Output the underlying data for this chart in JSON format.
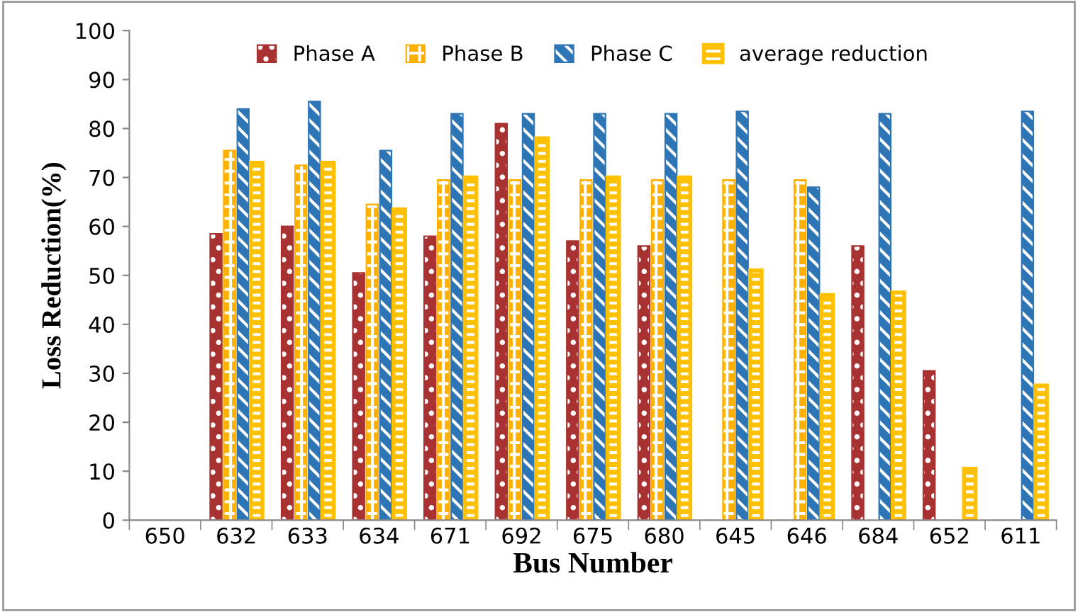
{
  "chart_data": {
    "type": "bar",
    "xlabel": "Bus Number",
    "ylabel": "Loss Reduction(%)",
    "categories": [
      "650",
      "632",
      "633",
      "634",
      "671",
      "692",
      "675",
      "680",
      "645",
      "646",
      "684",
      "652",
      "611"
    ],
    "series": [
      {
        "name": "Phase A",
        "color": "#a83232",
        "values": [
          null,
          58.5,
          60,
          50.5,
          58,
          81,
          57,
          56,
          null,
          null,
          56,
          30.5,
          null
        ]
      },
      {
        "name": "Phase B",
        "color": "#ffb000",
        "values": [
          null,
          75.5,
          72.5,
          64.5,
          69.5,
          69.5,
          69.5,
          69.5,
          69.5,
          69.5,
          null,
          null,
          null
        ]
      },
      {
        "name": "Phase C",
        "color": "#2e75b6",
        "values": [
          null,
          84,
          85.5,
          75.5,
          83,
          83,
          83,
          83,
          83.5,
          68,
          83,
          null,
          83.5
        ]
      },
      {
        "name": "average reduction",
        "color": "#ffc000",
        "values": [
          null,
          73,
          73,
          63.5,
          70,
          78,
          70,
          70,
          51,
          46,
          46.5,
          10.5,
          27.5
        ]
      }
    ],
    "ylim": [
      0,
      100
    ],
    "yticks": [
      0,
      10,
      20,
      30,
      40,
      50,
      60,
      70,
      80,
      90,
      100
    ],
    "grid": false,
    "legend": "top"
  }
}
